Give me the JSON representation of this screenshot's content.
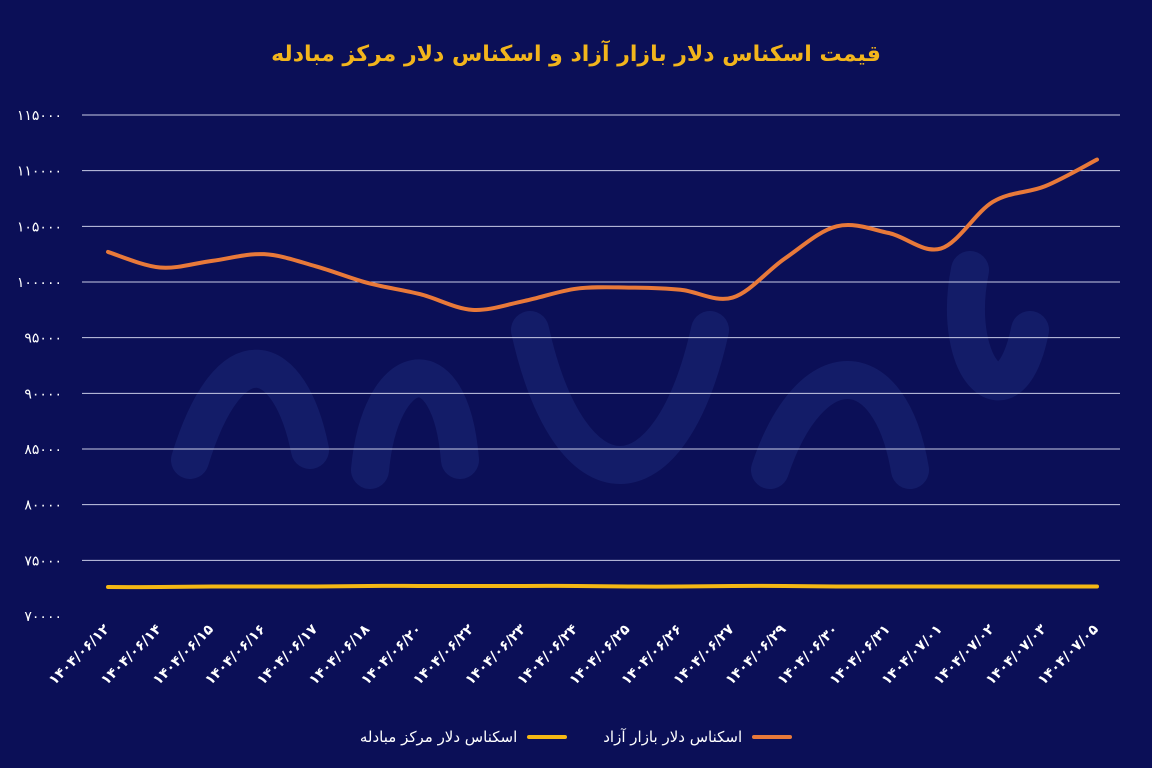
{
  "chart_data": {
    "type": "line",
    "title": "قیمت اسکناس دلار بازار آزاد و اسکناس دلار مرکز مبادله",
    "categories": [
      "۱۴۰۴/۰۶/۱۲",
      "۱۴۰۴/۰۶/۱۴",
      "۱۴۰۴/۰۶/۱۵",
      "۱۴۰۴/۰۶/۱۶",
      "۱۴۰۴/۰۶/۱۷",
      "۱۴۰۴/۰۶/۱۸",
      "۱۴۰۴/۰۶/۲۰",
      "۱۴۰۴/۰۶/۲۲",
      "۱۴۰۴/۰۶/۲۳",
      "۱۴۰۴/۰۶/۲۴",
      "۱۴۰۴/۰۶/۲۵",
      "۱۴۰۴/۰۶/۲۶",
      "۱۴۰۴/۰۶/۲۷",
      "۱۴۰۴/۰۶/۲۹",
      "۱۴۰۴/۰۶/۳۰",
      "۱۴۰۴/۰۶/۳۱",
      "۱۴۰۴/۰۷/۰۱",
      "۱۴۰۴/۰۷/۰۲",
      "۱۴۰۴/۰۷/۰۳",
      "۱۴۰۴/۰۷/۰۵"
    ],
    "series": [
      {
        "name": "اسکناس دلار بازار آزاد",
        "color": "#e8793a",
        "values": [
          102700,
          101300,
          101900,
          102500,
          101400,
          99900,
          98900,
          97500,
          98300,
          99400,
          99500,
          99300,
          98600,
          102100,
          105000,
          104400,
          103000,
          107200,
          108600,
          111000
        ]
      },
      {
        "name": "اسکناس دلار مرکز مبادله",
        "color": "#f5b814",
        "values": [
          72600,
          72600,
          72650,
          72650,
          72650,
          72700,
          72700,
          72700,
          72700,
          72700,
          72650,
          72650,
          72700,
          72700,
          72650,
          72650,
          72650,
          72650,
          72650,
          72650
        ]
      }
    ],
    "y_ticks": [
      70000,
      75000,
      80000,
      85000,
      90000,
      95000,
      100000,
      105000,
      110000,
      115000
    ],
    "y_tick_labels": [
      "۷۰۰۰۰",
      "۷۵۰۰۰",
      "۸۰۰۰۰",
      "۸۵۰۰۰",
      "۹۰۰۰۰",
      "۹۵۰۰۰",
      "۱۰۰۰۰۰",
      "۱۰۵۰۰۰",
      "۱۱۰۰۰۰",
      "۱۱۵۰۰۰"
    ],
    "ylim": [
      70000,
      115000
    ],
    "grid": true,
    "legend_position": "bottom-center"
  },
  "legend": {
    "free_market": "اسکناس دلار بازار آزاد",
    "exchange_center": "اسکناس دلار مرکز مبادله"
  },
  "colors": {
    "background": "#0b0f57",
    "free_market": "#e8793a",
    "exchange_center": "#f5b814",
    "grid": "#c8cbe6",
    "title": "#f2b51c"
  }
}
